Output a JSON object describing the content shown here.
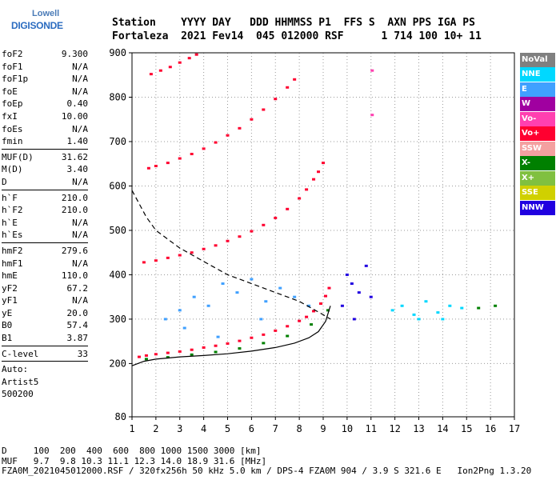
{
  "logo": {
    "line1": "Lowell",
    "line2": "DIGISONDE"
  },
  "header": {
    "labels": "Station    YYYY DAY   DDD HHMMSS P1  FFS S  AXN PPS IGA PS",
    "values": "Fortaleza  2021 Fev14  045 012000 RSF      1 714 100 10+ 11"
  },
  "params": {
    "group1": [
      {
        "k": "foF2",
        "v": "9.300"
      },
      {
        "k": "foF1",
        "v": "N/A"
      },
      {
        "k": "foF1p",
        "v": "N/A"
      },
      {
        "k": "foE",
        "v": "N/A"
      },
      {
        "k": "foEp",
        "v": "0.40"
      },
      {
        "k": "fxI",
        "v": "10.00"
      },
      {
        "k": "foEs",
        "v": "N/A"
      },
      {
        "k": "fmin",
        "v": "1.40"
      }
    ],
    "group2": [
      {
        "k": "MUF(D)",
        "v": "31.62"
      },
      {
        "k": "M(D)",
        "v": "3.40"
      },
      {
        "k": "D",
        "v": "N/A"
      }
    ],
    "group3": [
      {
        "k": "h`F",
        "v": "210.0"
      },
      {
        "k": "h`F2",
        "v": "210.0"
      },
      {
        "k": "h`E",
        "v": "N/A"
      },
      {
        "k": "h`Es",
        "v": "N/A"
      }
    ],
    "group4": [
      {
        "k": "hmF2",
        "v": "279.6"
      },
      {
        "k": "hmF1",
        "v": "N/A"
      },
      {
        "k": "hmE",
        "v": "110.0"
      },
      {
        "k": "yF2",
        "v": "67.2"
      },
      {
        "k": "yF1",
        "v": "N/A"
      },
      {
        "k": "yE",
        "v": "20.0"
      },
      {
        "k": "B0",
        "v": "57.4"
      },
      {
        "k": "B1",
        "v": "3.87"
      }
    ],
    "group5": [
      {
        "k": "C-level",
        "v": "33"
      }
    ],
    "auto": [
      "Auto:",
      "Artist5",
      "500200"
    ]
  },
  "legend": [
    {
      "label": "NoVal",
      "color": "#808080"
    },
    {
      "label": "NNE",
      "color": "#00d8ff"
    },
    {
      "label": "E",
      "color": "#40a0ff"
    },
    {
      "label": "W",
      "color": "#a000a0"
    },
    {
      "label": "Vo-",
      "color": "#ff40b0"
    },
    {
      "label": "Vo+",
      "color": "#ff0030"
    },
    {
      "label": "SSW",
      "color": "#f4a0a0"
    },
    {
      "label": "X-",
      "color": "#008000"
    },
    {
      "label": "X+",
      "color": "#80c040"
    },
    {
      "label": "SSE",
      "color": "#d0d000"
    },
    {
      "label": "NNW",
      "color": "#2000e0"
    }
  ],
  "footer": {
    "d_line": "D     100  200  400  600  800 1000 1500 3000 [km]",
    "muf_line": "MUF   9.7  9.8 10.3 11.1 12.3 14.0 18.9 31.6 [MHz]",
    "file_line": "FZA0M_2021045012000.RSF / 320fx256h 50 kHz 5.0 km / DPS-4 FZA0M 904 / 3.9 S 321.6 E   Ion2Png 1.3.20"
  },
  "chart_data": {
    "type": "scatter",
    "x_ticks": [
      1,
      2,
      3,
      4,
      5,
      6,
      7,
      8,
      9,
      10,
      11,
      12,
      13,
      14,
      15,
      16,
      17
    ],
    "y_ticks": [
      80,
      200,
      300,
      400,
      500,
      600,
      700,
      800,
      900
    ],
    "xlim": [
      1,
      17
    ],
    "ylim": [
      80,
      900
    ],
    "xlabel": "",
    "ylabel": "",
    "grid": "dotted",
    "legend_position": "right",
    "series": [
      {
        "color": "#ff0030",
        "x": [
          1.3,
          1.6,
          2.0,
          2.5,
          3.0,
          3.5,
          4.0,
          4.5,
          5.0,
          5.5,
          6.0,
          6.5,
          7.0,
          7.5,
          8.0,
          8.3,
          8.6,
          8.9,
          9.1,
          9.25
        ],
        "y": [
          215,
          218,
          221,
          224,
          227,
          231,
          236,
          240,
          245,
          251,
          258,
          265,
          274,
          284,
          296,
          305,
          318,
          335,
          352,
          370
        ]
      },
      {
        "color": "#ff0030",
        "x": [
          1.5,
          2.0,
          2.5,
          3.0,
          3.5,
          4.0,
          4.5,
          5.0,
          5.5,
          6.0,
          6.5,
          7.0,
          7.5,
          8.0,
          8.3,
          8.6,
          8.8,
          9.0
        ],
        "y": [
          428,
          432,
          438,
          444,
          450,
          458,
          466,
          476,
          486,
          498,
          512,
          528,
          548,
          572,
          592,
          615,
          632,
          652
        ]
      },
      {
        "color": "#ff0030",
        "x": [
          1.7,
          2.0,
          2.5,
          3.0,
          3.5,
          4.0,
          4.5,
          5.0,
          5.5,
          6.0,
          6.5,
          7.0,
          7.5,
          7.8
        ],
        "y": [
          640,
          645,
          652,
          662,
          672,
          684,
          698,
          714,
          730,
          750,
          772,
          796,
          822,
          840
        ]
      },
      {
        "color": "#ff0030",
        "x": [
          1.8,
          2.2,
          2.6,
          3.0,
          3.4,
          3.7
        ],
        "y": [
          852,
          860,
          868,
          878,
          888,
          896
        ]
      },
      {
        "color": "#40a0ff",
        "x": [
          2.4,
          3.0,
          3.6,
          4.2,
          4.8,
          5.4,
          6.0,
          6.6,
          7.2,
          7.8,
          8.4,
          3.2,
          4.6,
          6.4
        ],
        "y": [
          300,
          320,
          350,
          330,
          380,
          360,
          390,
          340,
          370,
          350,
          330,
          280,
          260,
          300
        ]
      },
      {
        "color": "#00d8ff",
        "x": [
          11.9,
          12.3,
          12.8,
          13.3,
          13.8,
          14.3,
          14.8,
          13.0,
          14.0
        ],
        "y": [
          320,
          330,
          310,
          340,
          315,
          330,
          325,
          300,
          300
        ]
      },
      {
        "color": "#2000e0",
        "x": [
          10.0,
          10.2,
          10.5,
          10.8,
          11.0,
          9.8,
          10.3
        ],
        "y": [
          400,
          380,
          360,
          420,
          350,
          330,
          300
        ]
      },
      {
        "color": "#ff40b0",
        "x": [
          11.05,
          11.05
        ],
        "y": [
          760,
          860
        ]
      },
      {
        "color": "#008000",
        "x": [
          1.6,
          2.5,
          3.5,
          4.5,
          5.5,
          6.5,
          7.5,
          8.5,
          9.2,
          15.5,
          16.2
        ],
        "y": [
          210,
          214,
          220,
          226,
          234,
          246,
          262,
          288,
          320,
          325,
          330
        ]
      }
    ],
    "model_profile": {
      "color": "#000000",
      "style": "solid",
      "x": [
        1.0,
        1.5,
        2.0,
        3.0,
        4.0,
        5.0,
        6.0,
        7.0,
        7.8,
        8.4,
        8.8,
        9.1,
        9.3
      ],
      "y": [
        195,
        205,
        210,
        215,
        218,
        222,
        228,
        236,
        246,
        258,
        272,
        295,
        330
      ]
    },
    "model_profile_dashed": {
      "color": "#000000",
      "style": "dashed",
      "x": [
        1.0,
        1.3,
        1.6,
        2.0,
        3.0,
        4.0,
        5.0,
        6.0,
        7.0,
        8.0,
        9.0,
        9.3
      ],
      "y": [
        590,
        560,
        530,
        500,
        460,
        430,
        400,
        380,
        360,
        340,
        310,
        300
      ]
    }
  }
}
